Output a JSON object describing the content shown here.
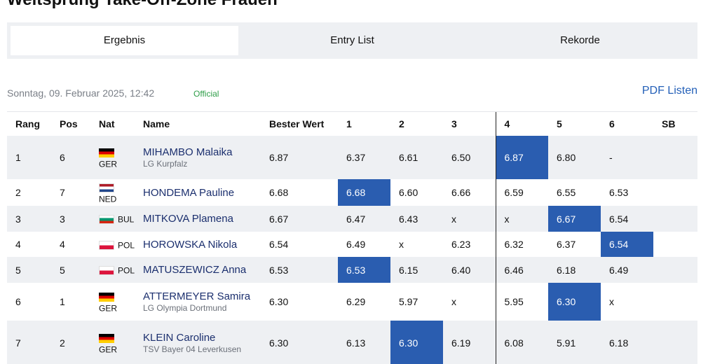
{
  "page": {
    "title": "Weitsprung Take-Off-Zone Frauen"
  },
  "tabs": [
    {
      "label": "Ergebnis",
      "active": true
    },
    {
      "label": "Entry List",
      "active": false
    },
    {
      "label": "Rekorde",
      "active": false
    }
  ],
  "meta": {
    "date": "Sonntag, 09. Februar 2025, 12:42",
    "status": "Official",
    "pdf_label": "PDF Listen"
  },
  "colors": {
    "highlight": "#2a5db0",
    "status": "#2e9e48",
    "link": "#2460b8",
    "name": "#1b2f6e"
  },
  "table": {
    "headers": [
      "Rang",
      "Pos",
      "Nat",
      "Name",
      "Bester Wert",
      "1",
      "2",
      "3",
      "4",
      "5",
      "6",
      "SB"
    ],
    "rows": [
      {
        "rank": "1",
        "pos": "6",
        "nat": "GER",
        "name": "MIHAMBO Malaika",
        "club": "LG Kurpfalz",
        "best": "6.87",
        "attempts": [
          "6.37",
          "6.61",
          "6.50",
          "6.87",
          "6.80",
          "-"
        ],
        "sb": "",
        "best_attempt": 4
      },
      {
        "rank": "2",
        "pos": "7",
        "nat": "NED",
        "name": "HONDEMA Pauline",
        "club": "",
        "best": "6.68",
        "attempts": [
          "6.68",
          "6.60",
          "6.66",
          "6.59",
          "6.55",
          "6.53"
        ],
        "sb": "",
        "best_attempt": 1
      },
      {
        "rank": "3",
        "pos": "3",
        "nat": "BUL",
        "name": "MITKOVA Plamena",
        "club": "",
        "best": "6.67",
        "attempts": [
          "6.47",
          "6.43",
          "x",
          "x",
          "6.67",
          "6.54"
        ],
        "sb": "",
        "best_attempt": 5
      },
      {
        "rank": "4",
        "pos": "4",
        "nat": "POL",
        "name": "HOROWSKA Nikola",
        "club": "",
        "best": "6.54",
        "attempts": [
          "6.49",
          "x",
          "6.23",
          "6.32",
          "6.37",
          "6.54"
        ],
        "sb": "",
        "best_attempt": 6
      },
      {
        "rank": "5",
        "pos": "5",
        "nat": "POL",
        "name": "MATUSZEWICZ Anna",
        "club": "",
        "best": "6.53",
        "attempts": [
          "6.53",
          "6.15",
          "6.40",
          "6.46",
          "6.18",
          "6.49"
        ],
        "sb": "",
        "best_attempt": 1
      },
      {
        "rank": "6",
        "pos": "1",
        "nat": "GER",
        "name": "ATTERMEYER Samira",
        "club": "LG Olympia Dortmund",
        "best": "6.30",
        "attempts": [
          "6.29",
          "5.97",
          "x",
          "5.95",
          "6.30",
          "x"
        ],
        "sb": "",
        "best_attempt": 5
      },
      {
        "rank": "7",
        "pos": "2",
        "nat": "GER",
        "name": "KLEIN Caroline",
        "club": "TSV Bayer 04 Leverkusen",
        "best": "6.30",
        "attempts": [
          "6.13",
          "6.30",
          "6.19",
          "6.08",
          "5.91",
          "6.18"
        ],
        "sb": "",
        "best_attempt": 2
      }
    ]
  }
}
